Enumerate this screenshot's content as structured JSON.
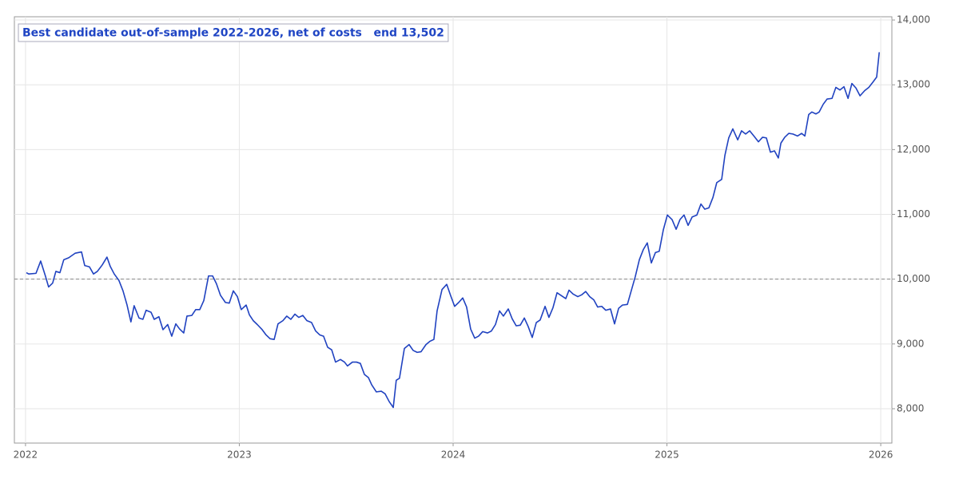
{
  "chart_data": {
    "type": "line",
    "title": "Best candidate out-of-sample 2022-2026, net of costs   end 13,502",
    "x": [
      2022.004,
      2022.015,
      2022.049,
      2022.071,
      2022.093,
      2022.108,
      2022.127,
      2022.142,
      2022.161,
      2022.179,
      2022.202,
      2022.232,
      2022.262,
      2022.277,
      2022.299,
      2022.318,
      2022.336,
      2022.359,
      2022.381,
      2022.396,
      2022.415,
      2022.437,
      2022.456,
      2022.475,
      2022.493,
      2022.508,
      2022.531,
      2022.549,
      2022.564,
      2022.587,
      2022.602,
      2022.624,
      2022.643,
      2022.665,
      2022.684,
      2022.703,
      2022.721,
      2022.74,
      2022.755,
      2022.778,
      2022.796,
      2022.815,
      2022.834,
      2022.856,
      2022.875,
      2022.893,
      2022.912,
      2022.935,
      2022.953,
      2022.972,
      2022.991,
      2023.009,
      2023.032,
      2023.047,
      2023.065,
      2023.084,
      2023.107,
      2023.125,
      2023.144,
      2023.163,
      2023.181,
      2023.204,
      2023.222,
      2023.241,
      2023.26,
      2023.278,
      2023.297,
      2023.316,
      2023.338,
      2023.357,
      2023.376,
      2023.394,
      2023.413,
      2023.432,
      2023.45,
      2023.473,
      2023.492,
      2023.506,
      2023.529,
      2023.548,
      2023.566,
      2023.585,
      2023.604,
      2023.619,
      2023.641,
      2023.664,
      2023.682,
      2023.701,
      2023.72,
      2023.734,
      2023.749,
      2023.772,
      2023.794,
      2023.813,
      2023.832,
      2023.85,
      2023.873,
      2023.891,
      2023.91,
      2023.925,
      2023.948,
      2023.97,
      2023.989,
      2024.007,
      2024.026,
      2024.045,
      2024.063,
      2024.082,
      2024.101,
      2024.119,
      2024.138,
      2024.161,
      2024.179,
      2024.198,
      2024.217,
      2024.235,
      2024.258,
      2024.276,
      2024.295,
      2024.314,
      2024.333,
      2024.351,
      2024.37,
      2024.389,
      2024.407,
      2024.43,
      2024.448,
      2024.467,
      2024.486,
      2024.504,
      2024.527,
      2024.542,
      2024.561,
      2024.583,
      2024.602,
      2024.62,
      2024.639,
      2024.658,
      2024.676,
      2024.695,
      2024.714,
      2024.736,
      2024.755,
      2024.774,
      2024.792,
      2024.815,
      2024.833,
      2024.852,
      2024.871,
      2024.89,
      2024.908,
      2024.927,
      2024.946,
      2024.964,
      2024.983,
      2025.002,
      2025.024,
      2025.043,
      2025.061,
      2025.08,
      2025.099,
      2025.118,
      2025.14,
      2025.159,
      2025.177,
      2025.196,
      2025.215,
      2025.233,
      2025.256,
      2025.271,
      2025.289,
      2025.308,
      2025.331,
      2025.349,
      2025.368,
      2025.387,
      2025.409,
      2025.428,
      2025.447,
      2025.465,
      2025.484,
      2025.503,
      2025.521,
      2025.533,
      2025.551,
      2025.57,
      2025.589,
      2025.611,
      2025.63,
      2025.645,
      2025.663,
      2025.678,
      2025.697,
      2025.712,
      2025.731,
      2025.749,
      2025.772,
      2025.79,
      2025.809,
      2025.828,
      2025.847,
      2025.865,
      2025.884,
      2025.903,
      2025.925,
      2025.944,
      2025.963,
      2025.981,
      2025.993
    ],
    "series": [
      {
        "color": "#2042c0",
        "values": [
          10100,
          10080,
          10090,
          10280,
          10050,
          9880,
          9940,
          10120,
          10100,
          10300,
          10330,
          10400,
          10420,
          10210,
          10190,
          10080,
          10120,
          10220,
          10340,
          10200,
          10080,
          9980,
          9820,
          9600,
          9340,
          9590,
          9400,
          9380,
          9520,
          9490,
          9380,
          9420,
          9220,
          9300,
          9120,
          9310,
          9230,
          9170,
          9430,
          9440,
          9530,
          9530,
          9670,
          10050,
          10050,
          9930,
          9750,
          9640,
          9630,
          9820,
          9730,
          9530,
          9600,
          9450,
          9360,
          9300,
          9220,
          9140,
          9080,
          9070,
          9310,
          9360,
          9430,
          9380,
          9460,
          9410,
          9440,
          9360,
          9330,
          9200,
          9140,
          9120,
          8950,
          8910,
          8720,
          8760,
          8720,
          8660,
          8720,
          8720,
          8700,
          8530,
          8480,
          8370,
          8260,
          8270,
          8230,
          8110,
          8020,
          8440,
          8470,
          8930,
          8990,
          8900,
          8870,
          8880,
          8990,
          9040,
          9070,
          9510,
          9840,
          9920,
          9740,
          9580,
          9640,
          9710,
          9570,
          9230,
          9090,
          9120,
          9190,
          9170,
          9200,
          9300,
          9510,
          9430,
          9540,
          9390,
          9280,
          9290,
          9400,
          9270,
          9100,
          9330,
          9370,
          9580,
          9410,
          9560,
          9790,
          9750,
          9700,
          9830,
          9770,
          9730,
          9760,
          9810,
          9730,
          9680,
          9570,
          9580,
          9520,
          9540,
          9310,
          9550,
          9600,
          9610,
          9820,
          10040,
          10300,
          10460,
          10560,
          10250,
          10410,
          10430,
          10760,
          10990,
          10920,
          10770,
          10920,
          10990,
          10830,
          10960,
          10990,
          11160,
          11080,
          11100,
          11260,
          11490,
          11540,
          11910,
          12180,
          12320,
          12150,
          12290,
          12240,
          12290,
          12200,
          12120,
          12190,
          12180,
          11960,
          11980,
          11870,
          12100,
          12190,
          12250,
          12240,
          12210,
          12250,
          12210,
          12540,
          12580,
          12550,
          12580,
          12700,
          12780,
          12790,
          12960,
          12920,
          12970,
          12790,
          13020,
          12950,
          12830,
          12910,
          12960,
          13040,
          13120,
          13502
        ]
      }
    ],
    "reference_line": 10000,
    "xlim": [
      2021.948,
      2026.052
    ],
    "xticks": [
      2022,
      2023,
      2024,
      2025,
      2026
    ],
    "ylim": [
      7470,
      14050
    ],
    "yticks": [
      {
        "value": 8000,
        "label": "8,000"
      },
      {
        "value": 9000,
        "label": "9,000"
      },
      {
        "value": 10000,
        "label": "10,000"
      },
      {
        "value": 11000,
        "label": "11,000"
      },
      {
        "value": 12000,
        "label": "12,000"
      },
      {
        "value": 13000,
        "label": "13,000"
      },
      {
        "value": 14000,
        "label": "14,000"
      }
    ],
    "grid": true
  }
}
